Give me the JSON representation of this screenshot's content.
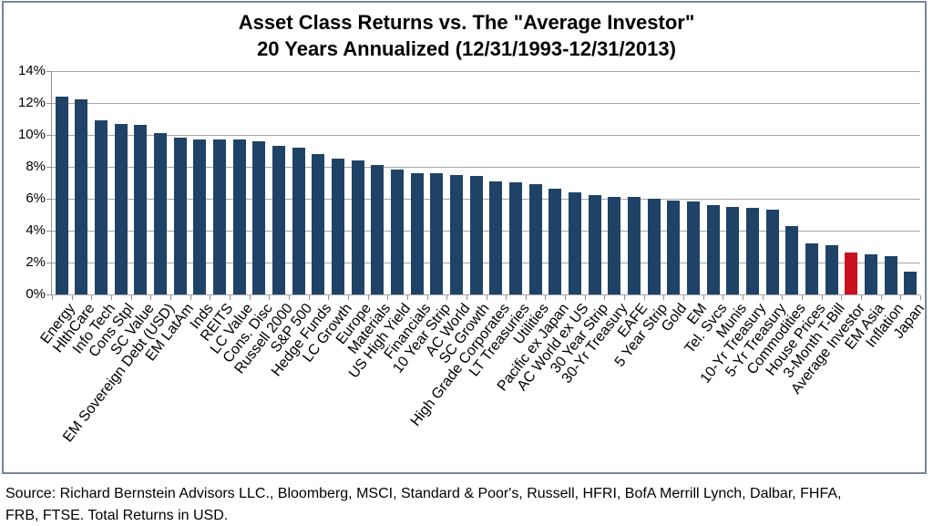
{
  "title": {
    "line1": "Asset Class Returns vs. The \"Average Investor\"",
    "line2": "20 Years Annualized (12/31/1993-12/31/2013)"
  },
  "source": {
    "line1": "Source: Richard Bernstein Advisors LLC., Bloomberg, MSCI, Standard & Poor's, Russell, HFRI, BofA Merrill Lynch, Dalbar, FHFA,",
    "line2": "FRB, FTSE.  Total Returns in USD."
  },
  "colors": {
    "bar": "#1f4366",
    "highlight": "#c9101f",
    "gridline": "#a6a6a6",
    "axis": "#8f8f8f",
    "border": "#74869f"
  },
  "chart_data": {
    "type": "bar",
    "title": "Asset Class Returns vs. The \"Average Investor\"",
    "subtitle": "20 Years Annualized (12/31/1993-12/31/2013)",
    "xlabel": "",
    "ylabel": "",
    "ylim": [
      0,
      14
    ],
    "grid": true,
    "legend": false,
    "y_ticks": [
      "14%",
      "12%",
      "10%",
      "8%",
      "6%",
      "4%",
      "2%",
      "0%"
    ],
    "highlight_category": "Average Investor",
    "categories": [
      "Energy",
      "HlthCare",
      "Info Tech",
      "Cons Stpl",
      "SC Value",
      "EM Sovereign Debt (USD)",
      "EM LatAm",
      "Inds",
      "REITS",
      "LC Value",
      "Cons. Disc",
      "Russell 2000",
      "S&P 500",
      "Hedge Funds",
      "LC Growth",
      "Europe",
      "Materials",
      "US High Yield",
      "Financials",
      "10 Year Strip",
      "AC World",
      "SC Growth",
      "High Grade Corporates",
      "LT Treasuries",
      "Utilities",
      "Pacific ex Japan",
      "AC World ex US",
      "30 Year Strip",
      "30-Yr Treasury",
      "EAFE",
      "5 Year Strip",
      "Gold",
      "EM",
      "Tel. Svcs",
      "Munis",
      "10-Yr Treasury",
      "5-Yr Treasury",
      "Commodities",
      "House Prices",
      "3-Month T-Bill",
      "Average Investor",
      "EM Asia",
      "Inflation",
      "Japan"
    ],
    "values": [
      12.4,
      12.2,
      10.9,
      10.7,
      10.6,
      10.1,
      9.8,
      9.7,
      9.7,
      9.7,
      9.6,
      9.3,
      9.2,
      8.8,
      8.5,
      8.4,
      8.1,
      7.8,
      7.6,
      7.6,
      7.5,
      7.4,
      7.1,
      7.0,
      6.9,
      6.6,
      6.4,
      6.2,
      6.1,
      6.1,
      6.0,
      5.9,
      5.8,
      5.6,
      5.5,
      5.4,
      5.3,
      4.3,
      3.2,
      3.1,
      2.6,
      2.5,
      2.4,
      1.4
    ]
  }
}
